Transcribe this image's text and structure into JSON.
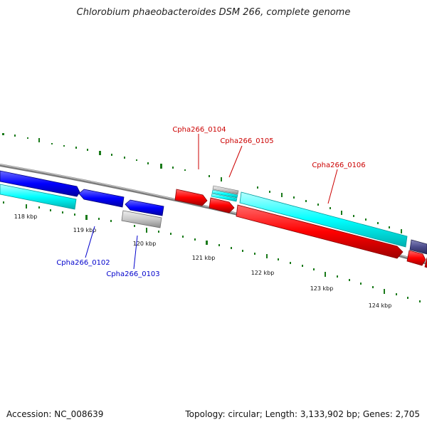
{
  "title": "Chlorobium phaeobacteroides DSM 266, complete genome",
  "footer": {
    "accession": "Accession: NC_008639",
    "summary": "Topology: circular; Length: 3,133,902 bp; Genes: 2,705"
  },
  "ruler": {
    "unit": "kbp",
    "ticks": [
      "118 kbp",
      "119 kbp",
      "120 kbp",
      "121 kbp",
      "122 kbp",
      "123 kbp",
      "124 kbp"
    ]
  },
  "colors": {
    "forward_gene": "#ff0000",
    "reverse_gene": "#0000ff",
    "forward_cds": "#00ffff",
    "other_feature": "#c8c8c8",
    "dark_feature": "#4b4b8c",
    "backbone": "#7a7a7a",
    "gc_marks": "#1a7a1a"
  },
  "genes": {
    "forward": [
      {
        "name": "Cpha266_0104"
      },
      {
        "name": "Cpha266_0105"
      },
      {
        "name": "Cpha266_0106"
      }
    ],
    "reverse": [
      {
        "name": "Cpha266_0102"
      },
      {
        "name": "Cpha266_0103"
      }
    ]
  }
}
